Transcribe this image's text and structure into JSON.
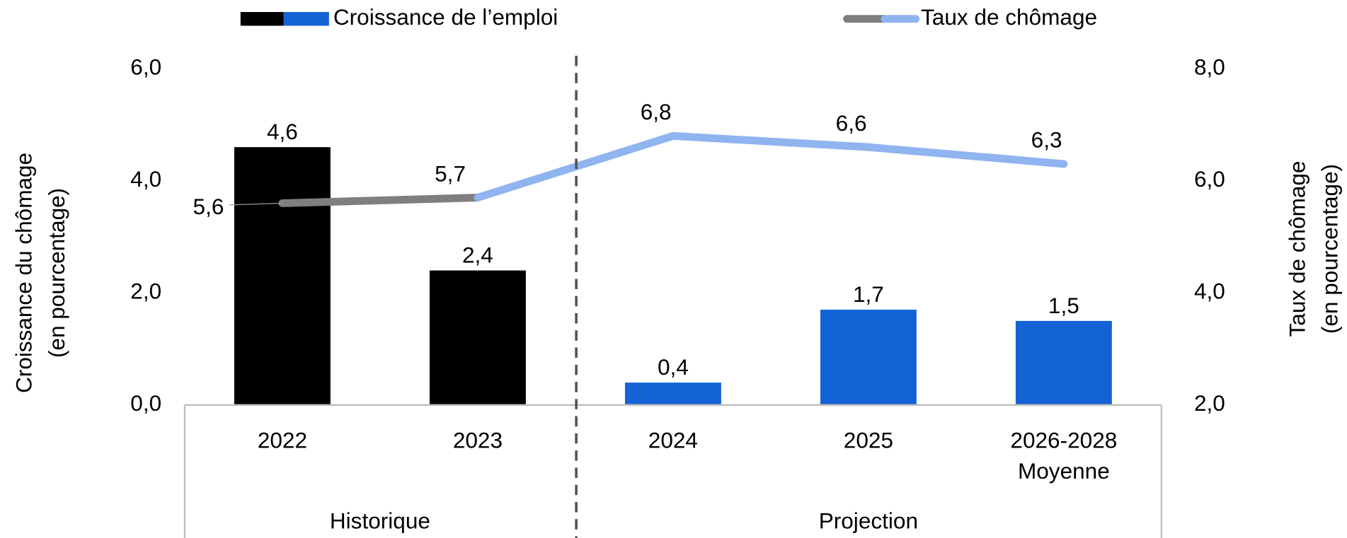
{
  "chart_data": {
    "type": "bar-line",
    "legend": {
      "bar": "Croissance de l’emploi",
      "line": "Taux de chômage"
    },
    "categories": [
      [
        "2022"
      ],
      [
        "2023"
      ],
      [
        "2024"
      ],
      [
        "2025"
      ],
      [
        "2026-2028",
        "Moyenne"
      ]
    ],
    "groups": [
      {
        "name": "Historique",
        "span": [
          0,
          1
        ]
      },
      {
        "name": "Projection",
        "span": [
          2,
          4
        ]
      }
    ],
    "y_label": [
      "Croissance du chômage",
      "(en pourcentage)"
    ],
    "y2_label": [
      "Taux de chômage",
      "(en pourcentage)"
    ],
    "ylim": [
      0,
      6
    ],
    "yticks": [
      {
        "value": 0,
        "label": "0,0"
      },
      {
        "value": 2,
        "label": "2,0"
      },
      {
        "value": 4,
        "label": "4,0"
      },
      {
        "value": 6,
        "label": "6,0"
      }
    ],
    "y2lim": [
      2,
      8
    ],
    "y2ticks": [
      {
        "value": 2,
        "label": "2,0"
      },
      {
        "value": 4,
        "label": "4,0"
      },
      {
        "value": 6,
        "label": "6,0"
      },
      {
        "value": 8,
        "label": "8,0"
      }
    ],
    "series": [
      {
        "name": "Croissance de l’emploi",
        "type": "bar",
        "colors": [
          "#000000",
          "#000000",
          "#1463d6",
          "#1463d6",
          "#1463d6"
        ],
        "values": [
          4.6,
          2.4,
          0.4,
          1.7,
          1.5
        ],
        "value_labels": [
          "4,6",
          "2,4",
          "0,4",
          "1,7",
          "1,5"
        ]
      },
      {
        "name": "Taux de chômage",
        "type": "line",
        "axis": "y2",
        "colors": [
          "#7f7f7f",
          "#7f7f7f",
          "#8fb4f0",
          "#8fb4f0",
          "#8fb4f0"
        ],
        "values": [
          5.6,
          5.7,
          6.8,
          6.6,
          6.3
        ],
        "value_labels": [
          "5,6",
          "5,7",
          "6,8",
          "6,6",
          "6,3"
        ]
      }
    ]
  }
}
